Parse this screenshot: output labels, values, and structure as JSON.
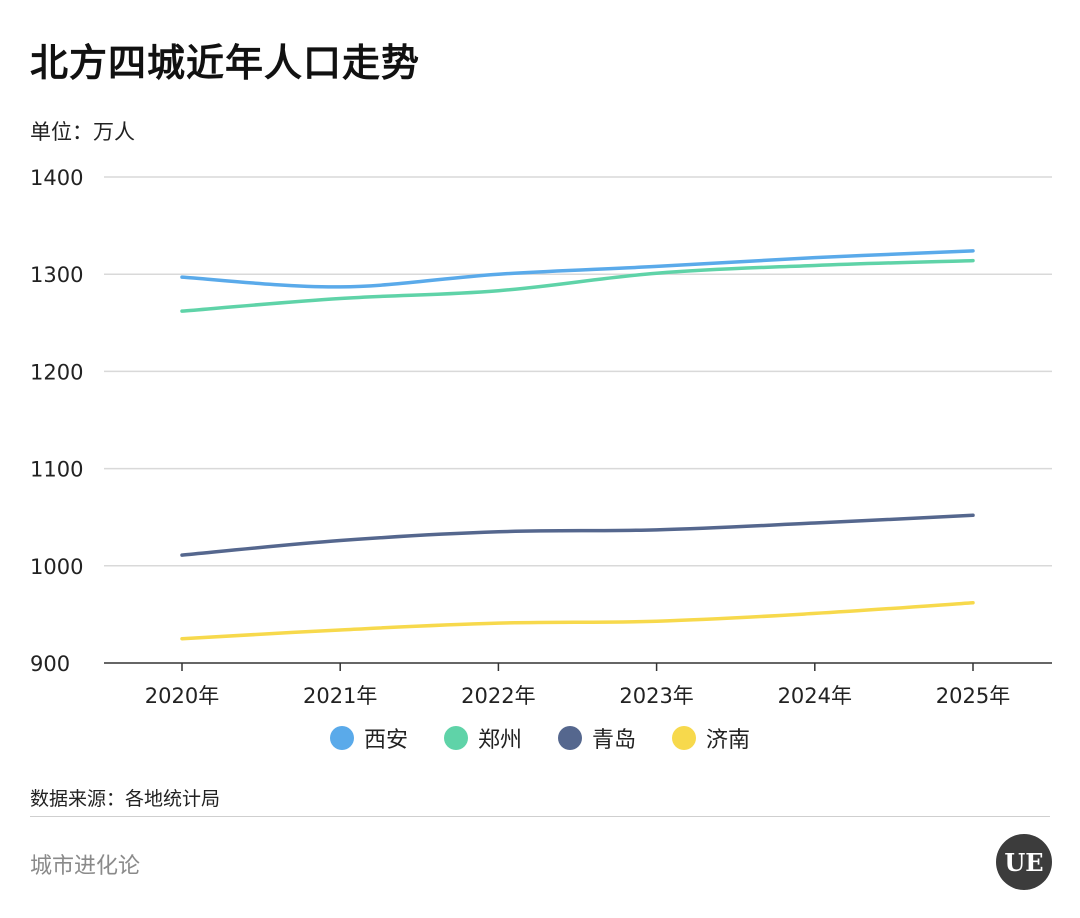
{
  "title": "北方四城近年人口走势",
  "unit_label": "单位：万人",
  "source_label": "数据来源：各地统计局",
  "footer_brand": "城市进化论",
  "logo_text": "UE",
  "chart_data": {
    "type": "line",
    "title": "北方四城近年人口走势",
    "ylabel": "单位：万人",
    "xlabel": "",
    "categories": [
      "2020年",
      "2021年",
      "2022年",
      "2023年",
      "2024年",
      "2025年"
    ],
    "ylim": [
      900,
      1400
    ],
    "yticks": [
      900,
      1000,
      1100,
      1200,
      1300,
      1400
    ],
    "grid": true,
    "legend_position": "bottom",
    "series": [
      {
        "name": "西安",
        "color": "#5aaaea",
        "values": [
          1297,
          1287,
          1300,
          1308,
          1317,
          1324
        ]
      },
      {
        "name": "郑州",
        "color": "#5fd3a8",
        "values": [
          1262,
          1275,
          1283,
          1301,
          1309,
          1314
        ]
      },
      {
        "name": "青岛",
        "color": "#55678e",
        "values": [
          1011,
          1026,
          1035,
          1037,
          1044,
          1052
        ]
      },
      {
        "name": "济南",
        "color": "#f7d94c",
        "values": [
          925,
          934,
          941,
          943,
          951,
          962
        ]
      }
    ]
  }
}
